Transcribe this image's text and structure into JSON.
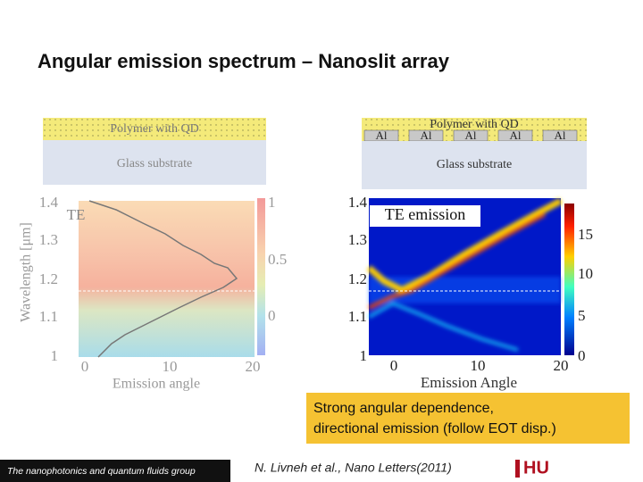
{
  "title": "Angular emission spectrum – Nanoslit array",
  "left_figure": {
    "layer_top": "Polymer with QD",
    "layer_bottom": "Glass substrate",
    "label": "TE",
    "y_label": "Wavelength [μm]",
    "x_label": "Emission angle",
    "y_ticks": [
      "1.4",
      "1.3",
      "1.2",
      "1.1",
      "1"
    ],
    "x_ticks": [
      "0",
      "10",
      "20"
    ],
    "colorbar_ticks": [
      "1",
      "0.5",
      "0"
    ]
  },
  "right_figure": {
    "layer_top": "Polymer with QD",
    "metal_labels": [
      "Al",
      "Al",
      "Al",
      "Al",
      "Al"
    ],
    "layer_bottom": "Glass substrate",
    "label": "TE emission",
    "x_label": "Emission Angle",
    "y_ticks": [
      "1.4",
      "1.3",
      "1.2",
      "1.1",
      "1"
    ],
    "x_ticks": [
      "0",
      "10",
      "20"
    ],
    "colorbar_ticks": [
      "15",
      "10",
      "5",
      "0"
    ]
  },
  "callout": [
    "Strong angular dependence,",
    "directional emission (follow EOT disp.)"
  ],
  "footer": {
    "group": "The nanophotonics and quantum fluids group",
    "citation": "N. Livneh et al., Nano Letters(2011)",
    "logo": "HU"
  }
}
